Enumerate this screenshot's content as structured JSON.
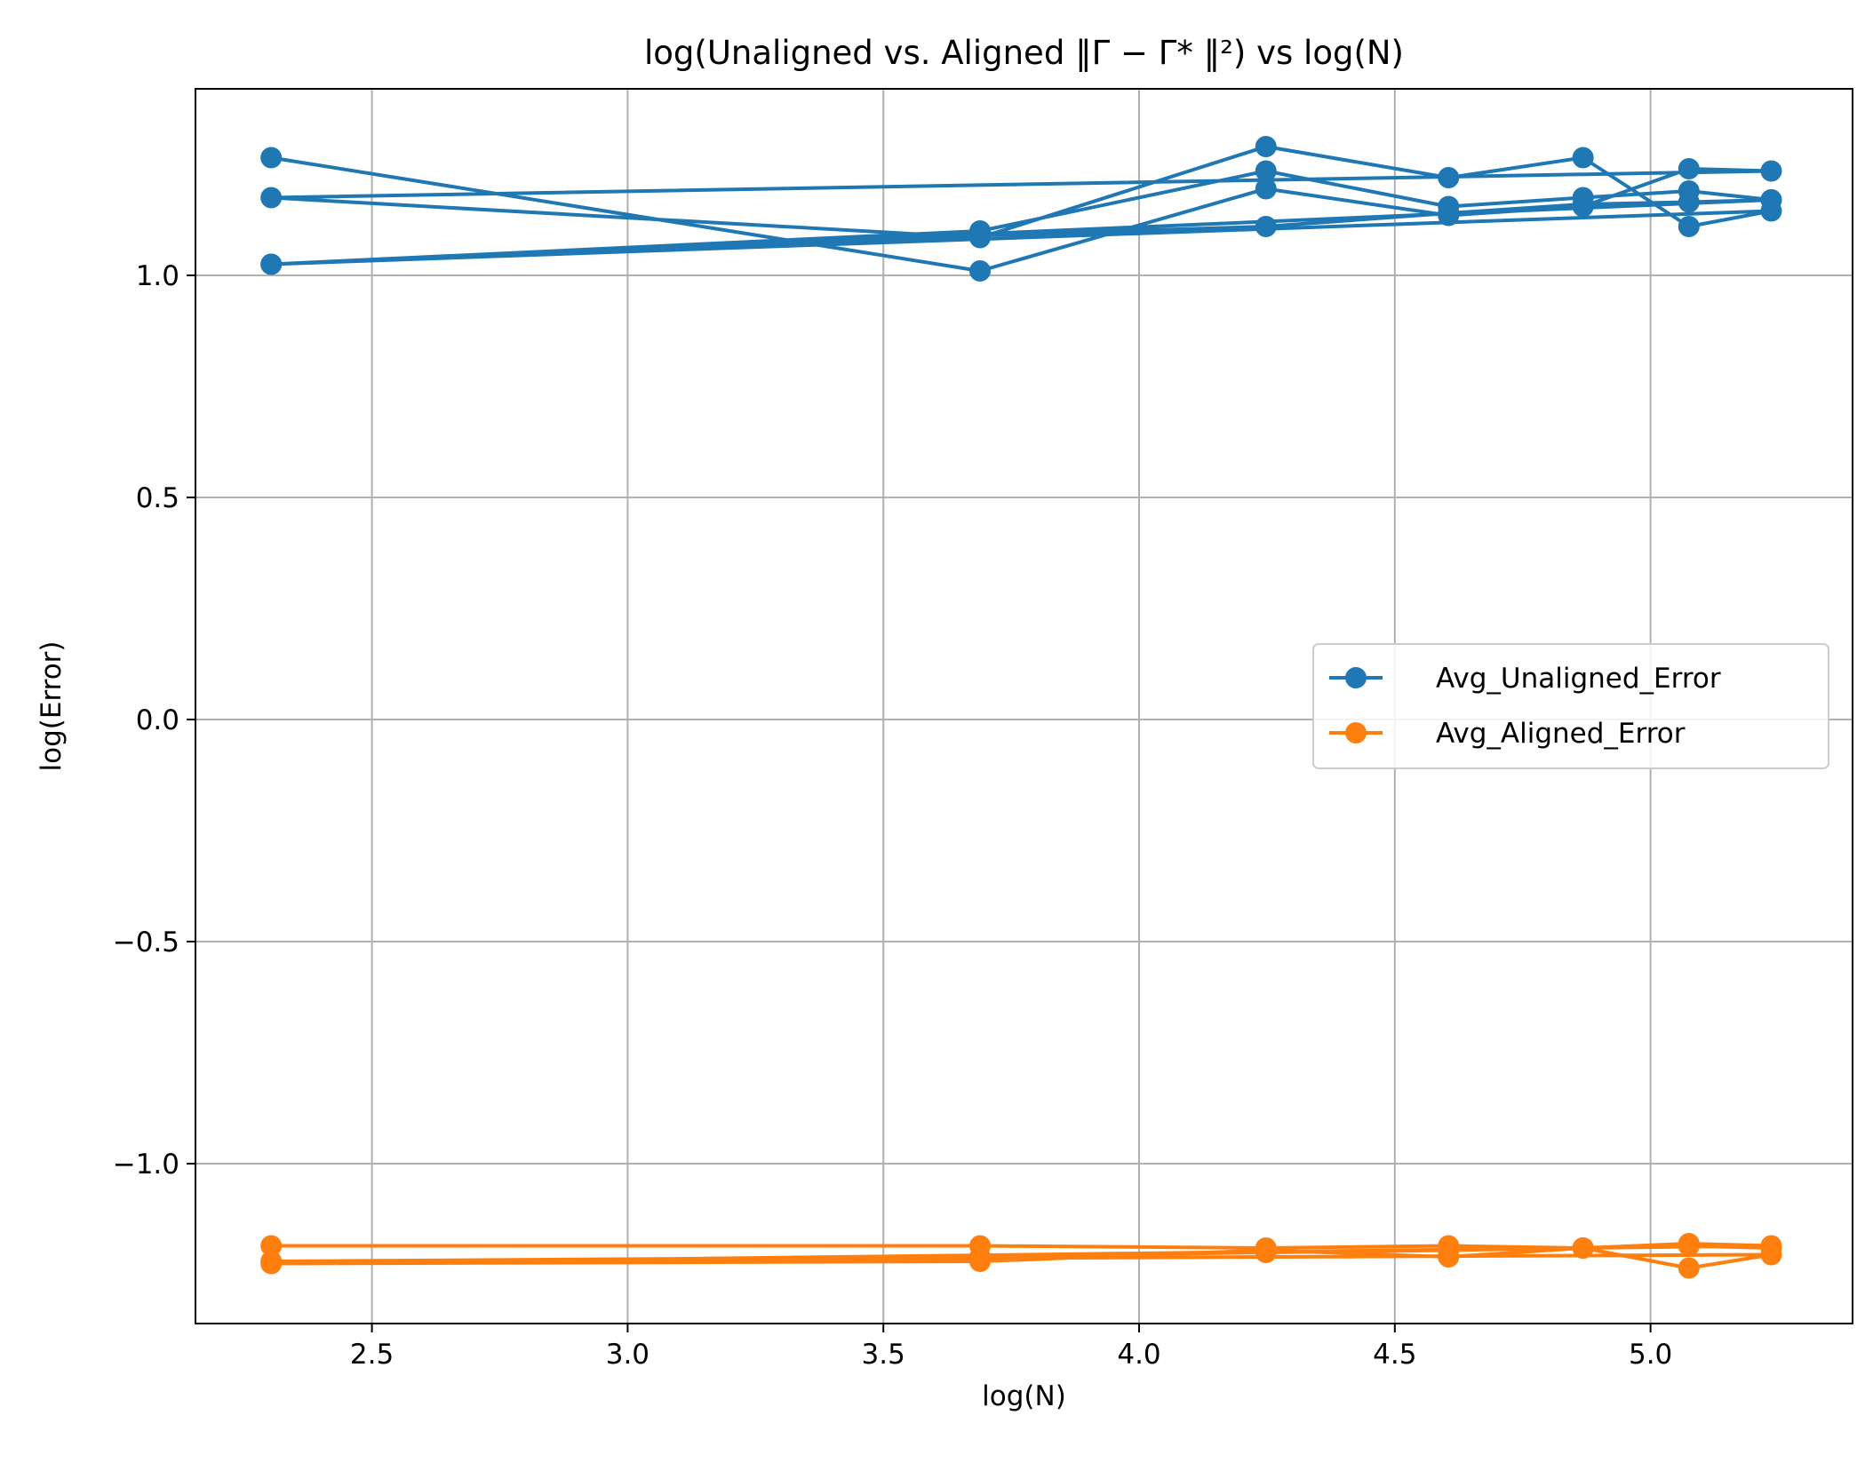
{
  "chart_data": {
    "type": "line",
    "title": "log(Unaligned vs. Aligned ‖Γ − Γ* ‖²) vs log(N)",
    "xlabel": "log(N)",
    "ylabel": "log(Error)",
    "xlim": [
      2.155,
      5.395
    ],
    "ylim": [
      -1.36,
      1.42
    ],
    "xticks": [
      2.5,
      3.0,
      3.5,
      4.0,
      4.5,
      5.0
    ],
    "xtick_labels": [
      "2.5",
      "3.0",
      "3.5",
      "4.0",
      "4.5",
      "5.0"
    ],
    "yticks": [
      -1.0,
      -0.5,
      0.0,
      0.5,
      1.0
    ],
    "ytick_labels": [
      "−1.0",
      "−0.5",
      "0.0",
      "0.5",
      "1.0"
    ],
    "grid": true,
    "legend_position": "center-right",
    "series": [
      {
        "name": "Avg_Unaligned_Error",
        "color": "#1f77b4",
        "x": [
          2.303,
          3.689,
          4.248,
          4.605,
          4.868,
          5.075,
          5.236,
          2.303,
          3.689,
          4.248,
          4.605,
          4.868,
          5.075,
          5.236,
          2.303,
          3.689,
          4.248,
          4.605,
          4.868,
          5.075,
          5.236,
          2.303,
          3.689,
          4.248,
          4.605,
          4.868,
          5.075,
          5.236
        ],
        "y": [
          1.265,
          1.01,
          1.195,
          1.135,
          1.155,
          1.24,
          1.235,
          1.175,
          1.085,
          1.29,
          1.22,
          1.265,
          1.11,
          1.145,
          1.025,
          1.1,
          1.235,
          1.155,
          1.175,
          1.19,
          1.17,
          1.025,
          1.09,
          1.11,
          1.14,
          1.16,
          1.165,
          1.17
        ]
      },
      {
        "name": "Avg_Aligned_Error",
        "color": "#ff7f0e",
        "x": [
          2.303,
          3.689,
          4.248,
          4.605,
          4.868,
          5.075,
          5.236,
          2.303,
          3.689,
          4.248,
          4.605,
          4.868,
          5.075,
          5.236,
          2.303,
          3.689,
          4.248,
          4.605,
          4.868,
          5.075,
          5.236
        ],
        "y": [
          -1.185,
          -1.185,
          -1.19,
          -1.185,
          -1.19,
          -1.18,
          -1.185,
          -1.225,
          -1.22,
          -1.195,
          -1.21,
          -1.19,
          -1.235,
          -1.205,
          -1.22,
          -1.21,
          -1.2,
          -1.195,
          -1.19,
          -1.185,
          -1.19
        ]
      }
    ]
  },
  "colors": {
    "grid": "#b0b0b0",
    "axes": "#000000",
    "legend_border": "#cccccc"
  }
}
